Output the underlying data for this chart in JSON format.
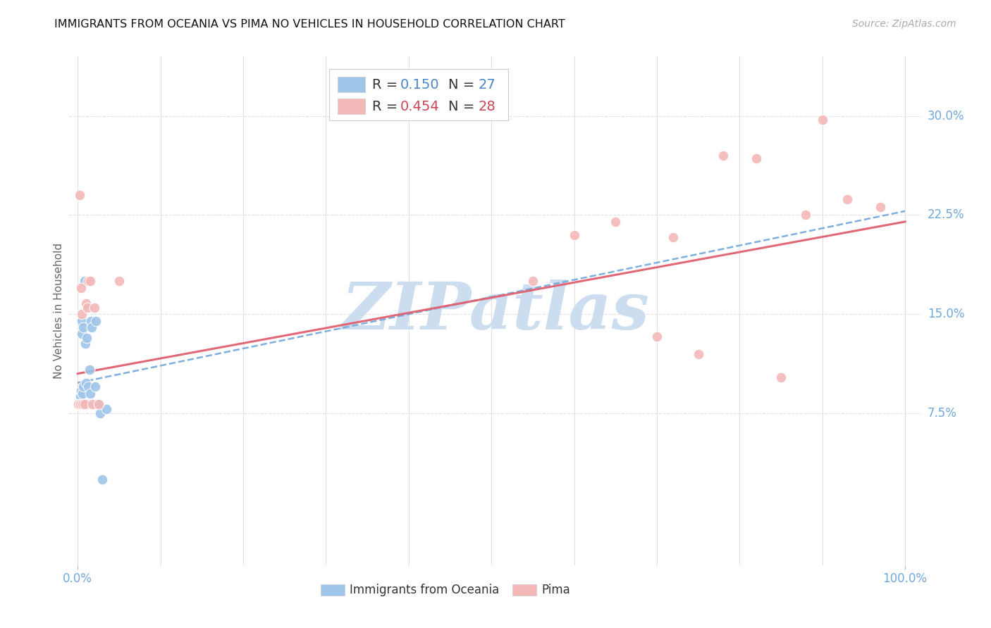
{
  "title": "IMMIGRANTS FROM OCEANIA VS PIMA NO VEHICLES IN HOUSEHOLD CORRELATION CHART",
  "source": "Source: ZipAtlas.com",
  "ylabel": "No Vehicles in Household",
  "ytick_labels": [
    "7.5%",
    "15.0%",
    "22.5%",
    "30.0%"
  ],
  "ytick_values": [
    0.075,
    0.15,
    0.225,
    0.3
  ],
  "xtick_labels": [
    "0.0%",
    "100.0%"
  ],
  "xtick_values": [
    0.0,
    1.0
  ],
  "xlim": [
    -0.01,
    1.02
  ],
  "ylim": [
    -0.04,
    0.345
  ],
  "color_blue": "#9fc5e8",
  "color_pink": "#f4b8b8",
  "color_line_blue": "#6fa8dc",
  "color_line_pink": "#e06070",
  "color_axis": "#6fa8dc",
  "watermark_text": "ZIPatlas",
  "watermark_color": "#ccddf0",
  "blue_x": [
    0.002,
    0.003,
    0.004,
    0.005,
    0.005,
    0.006,
    0.007,
    0.007,
    0.008,
    0.009,
    0.01,
    0.011,
    0.012,
    0.013,
    0.014,
    0.015,
    0.016,
    0.017,
    0.018,
    0.02,
    0.021,
    0.022,
    0.023,
    0.025,
    0.027,
    0.03,
    0.035
  ],
  "blue_y": [
    0.082,
    0.088,
    0.092,
    0.135,
    0.145,
    0.09,
    0.095,
    0.14,
    0.175,
    0.128,
    0.098,
    0.132,
    0.082,
    0.095,
    0.108,
    0.09,
    0.145,
    0.14,
    0.082,
    0.082,
    0.095,
    0.145,
    0.082,
    0.082,
    0.075,
    0.025,
    0.078
  ],
  "pink_x": [
    0.001,
    0.002,
    0.003,
    0.004,
    0.005,
    0.006,
    0.008,
    0.01,
    0.012,
    0.013,
    0.015,
    0.018,
    0.02,
    0.025,
    0.05,
    0.55,
    0.6,
    0.65,
    0.7,
    0.72,
    0.75,
    0.78,
    0.82,
    0.85,
    0.88,
    0.9,
    0.93,
    0.97
  ],
  "pink_y": [
    0.082,
    0.24,
    0.082,
    0.17,
    0.15,
    0.082,
    0.082,
    0.158,
    0.155,
    0.175,
    0.175,
    0.082,
    0.155,
    0.082,
    0.175,
    0.175,
    0.21,
    0.22,
    0.133,
    0.208,
    0.12,
    0.27,
    0.268,
    0.102,
    0.225,
    0.297,
    0.237,
    0.231
  ],
  "blue_line_x": [
    0.0,
    1.0
  ],
  "blue_line_y": [
    0.098,
    0.228
  ],
  "pink_line_x": [
    0.0,
    1.0
  ],
  "pink_line_y": [
    0.105,
    0.22
  ],
  "background_color": "#ffffff",
  "grid_color": "#e0e0e0",
  "title_color": "#111111",
  "title_fontsize": 11.5,
  "source_fontsize": 10
}
